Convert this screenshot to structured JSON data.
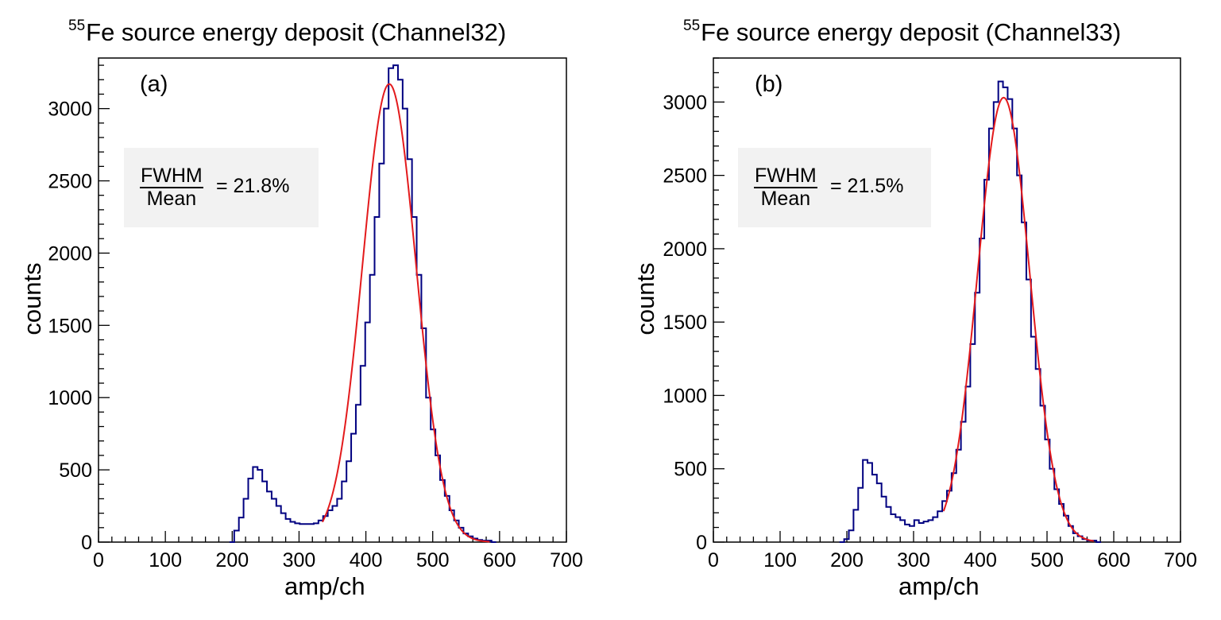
{
  "chart_data": [
    {
      "type": "histogram",
      "panel_label": "(a)",
      "title": "Fe source energy deposit (Channel32)",
      "title_superscript": "55",
      "xlabel": "amp/ch",
      "ylabel": "counts",
      "xlim": [
        0,
        700
      ],
      "ylim": [
        0,
        3350
      ],
      "xticks": [
        0,
        100,
        200,
        300,
        400,
        500,
        600,
        700
      ],
      "yticks": [
        0,
        500,
        1000,
        1500,
        2000,
        2500,
        3000
      ],
      "annotation": {
        "numerator": "FWHM",
        "denominator": "Mean",
        "value_text": "= 21.8%"
      },
      "histogram": {
        "bin_width": 7,
        "bin_start": 196,
        "values": [
          0,
          80,
          170,
          300,
          440,
          520,
          500,
          420,
          350,
          300,
          250,
          200,
          160,
          140,
          130,
          125,
          125,
          125,
          130,
          150,
          180,
          220,
          250,
          300,
          420,
          560,
          750,
          950,
          1220,
          1520,
          1850,
          2250,
          2620,
          3000,
          3280,
          3300,
          3200,
          3000,
          2650,
          2250,
          1850,
          1480,
          1000,
          780,
          600,
          430,
          320,
          220,
          150,
          100,
          60,
          40,
          25,
          15,
          10,
          10,
          0
        ]
      },
      "fit": {
        "type": "gaussian",
        "amplitude": 3170,
        "mean": 435,
        "sigma": 40,
        "range": [
          335,
          585
        ],
        "color": "#e31a1c"
      },
      "colors": {
        "histogram": "#000080",
        "fit": "#e31a1c"
      }
    },
    {
      "type": "histogram",
      "panel_label": "(b)",
      "title": "Fe source energy deposit (Channel33)",
      "title_superscript": "55",
      "xlabel": "amp/ch",
      "ylabel": "counts",
      "xlim": [
        0,
        700
      ],
      "ylim": [
        0,
        3300
      ],
      "xticks": [
        0,
        100,
        200,
        300,
        400,
        500,
        600,
        700
      ],
      "yticks": [
        0,
        500,
        1000,
        1500,
        2000,
        2500,
        3000
      ],
      "annotation": {
        "numerator": "FWHM",
        "denominator": "Mean",
        "value_text": "= 21.5%"
      },
      "histogram": {
        "bin_width": 7,
        "bin_start": 189,
        "values": [
          0,
          20,
          80,
          220,
          370,
          560,
          540,
          460,
          400,
          310,
          240,
          190,
          170,
          150,
          120,
          110,
          150,
          130,
          140,
          150,
          170,
          210,
          280,
          350,
          470,
          630,
          820,
          1060,
          1350,
          1700,
          2070,
          2470,
          2820,
          3000,
          3140,
          3100,
          3020,
          2820,
          2500,
          2180,
          1790,
          1400,
          1180,
          930,
          700,
          500,
          360,
          260,
          180,
          110,
          60,
          40,
          20,
          10,
          10,
          0
        ]
      },
      "fit": {
        "type": "gaussian",
        "amplitude": 3030,
        "mean": 435,
        "sigma": 39,
        "range": [
          345,
          570
        ],
        "color": "#e31a1c"
      },
      "colors": {
        "histogram": "#000080",
        "fit": "#e31a1c"
      }
    }
  ]
}
